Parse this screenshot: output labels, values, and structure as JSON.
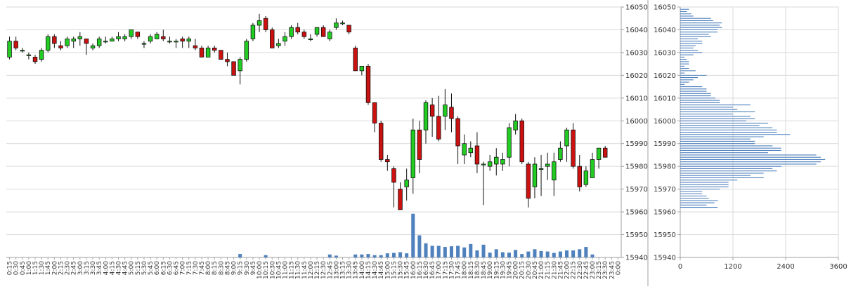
{
  "colors": {
    "up": "#22cc22",
    "down": "#cc1111",
    "wick": "#111111",
    "volume": "#4f81bd",
    "profile": "#4f81bd",
    "grid": "#d9d9d9",
    "axis": "#a0a0a0"
  },
  "chart_data": [
    {
      "type": "candlestick",
      "title": "",
      "xlabel": "",
      "ylabel": "",
      "ylim": [
        15940,
        16050
      ],
      "yticks": [
        15940,
        15950,
        15960,
        15970,
        15980,
        15990,
        16000,
        16010,
        16020,
        16030,
        16040,
        16050
      ],
      "grid": true,
      "categories": [
        "0:15",
        "0:30",
        "0:45",
        "1:00",
        "1:15",
        "1:30",
        "1:45",
        "2:00",
        "2:15",
        "2:30",
        "2:45",
        "3:00",
        "3:15",
        "3:30",
        "3:45",
        "4:00",
        "4:15",
        "4:30",
        "4:45",
        "5:00",
        "5:15",
        "5:30",
        "5:45",
        "6:00",
        "6:15",
        "6:30",
        "6:45",
        "7:00",
        "7:15",
        "7:30",
        "7:45",
        "8:00",
        "8:15",
        "8:30",
        "8:45",
        "9:00",
        "9:15",
        "9:30",
        "9:45",
        "10:00",
        "10:15",
        "10:30",
        "10:45",
        "11:00",
        "11:15",
        "11:30",
        "11:45",
        "12:00",
        "12:15",
        "12:30",
        "12:45",
        "13:00",
        "13:15",
        "13:30",
        "13:45",
        "14:00",
        "14:15",
        "14:30",
        "14:45",
        "15:00",
        "15:15",
        "15:30",
        "15:45",
        "16:00",
        "16:15",
        "16:30",
        "16:45",
        "17:00",
        "17:15",
        "17:30",
        "17:45",
        "18:00",
        "18:15",
        "18:30",
        "18:45",
        "19:00",
        "19:15",
        "19:30",
        "19:45",
        "20:00",
        "20:15",
        "20:30",
        "20:45",
        "21:00",
        "21:15",
        "21:30",
        "21:45",
        "22:00",
        "22:15",
        "22:30",
        "22:45",
        "23:00",
        "23:15",
        "23:30",
        "23:45",
        "0:00"
      ],
      "ohlc": [
        [
          16028,
          16037,
          16027,
          16035
        ],
        [
          16035,
          16037,
          16031,
          16032
        ],
        [
          16031,
          16032,
          16030,
          16031
        ],
        [
          16029,
          16030,
          16027,
          16029
        ],
        [
          16028,
          16029,
          16025,
          16026
        ],
        [
          16027,
          16032,
          16026,
          16031
        ],
        [
          16031,
          16038,
          16030,
          16037
        ],
        [
          16037,
          16038,
          16032,
          16034
        ],
        [
          16033,
          16035,
          16031,
          16032
        ],
        [
          16033,
          16037,
          16032,
          16036
        ],
        [
          16035,
          16037,
          16032,
          16036
        ],
        [
          16036,
          16039,
          16033,
          16037
        ],
        [
          16036,
          16036,
          16029,
          16034
        ],
        [
          16032,
          16034,
          16031,
          16033
        ],
        [
          16033,
          16037,
          16032,
          16036
        ],
        [
          16035,
          16037,
          16034,
          16035
        ],
        [
          16035,
          16037,
          16035,
          16036
        ],
        [
          16036,
          16039,
          16035,
          16037
        ],
        [
          16036,
          16038,
          16035,
          16037
        ],
        [
          16037,
          16040,
          16036,
          16040
        ],
        [
          16039,
          16039,
          16036,
          16037
        ],
        [
          16034,
          16035,
          16032,
          16034
        ],
        [
          16035,
          16038,
          16034,
          16037
        ],
        [
          16036,
          16039,
          16036,
          16038
        ],
        [
          16037,
          16040,
          16035,
          16036
        ],
        [
          16035,
          16037,
          16034,
          16035
        ],
        [
          16035,
          16036,
          16032,
          16035
        ],
        [
          16036,
          16037,
          16032,
          16035
        ],
        [
          16035,
          16037,
          16032,
          16036
        ],
        [
          16033,
          16036,
          16031,
          16032
        ],
        [
          16032,
          16033,
          16028,
          16028
        ],
        [
          16028,
          16033,
          16028,
          16032
        ],
        [
          16032,
          16033,
          16030,
          16031
        ],
        [
          16031,
          16031,
          16027,
          16027
        ],
        [
          16027,
          16030,
          16024,
          16026
        ],
        [
          16026,
          16026,
          16020,
          16020
        ],
        [
          16022,
          16028,
          16016,
          16027
        ],
        [
          16027,
          16036,
          16026,
          16035
        ],
        [
          16036,
          16043,
          16035,
          16042
        ],
        [
          16042,
          16047,
          16039,
          16044
        ],
        [
          16045,
          16046,
          16039,
          16040
        ],
        [
          16040,
          16041,
          16032,
          16032
        ],
        [
          16033,
          16036,
          16032,
          16034
        ],
        [
          16035,
          16039,
          16033,
          16037
        ],
        [
          16037,
          16042,
          16036,
          16041
        ],
        [
          16041,
          16043,
          16038,
          16039
        ],
        [
          16039,
          16040,
          16036,
          16037
        ],
        [
          16036,
          16038,
          16035,
          16036
        ],
        [
          16038,
          16041,
          16037,
          16041
        ],
        [
          16041,
          16042,
          16037,
          16037
        ],
        [
          16036,
          16040,
          16035,
          16039
        ],
        [
          16041,
          16045,
          16040,
          16043
        ],
        [
          16043,
          16044,
          16042,
          16043
        ],
        [
          16042,
          16042,
          16038,
          16039
        ],
        [
          16032,
          16033,
          16022,
          16022
        ],
        [
          16022,
          16024,
          16020,
          16024
        ],
        [
          16024,
          16025,
          16007,
          16008
        ],
        [
          16008,
          16008,
          15995,
          15999
        ],
        [
          15999,
          16000,
          15982,
          15983
        ],
        [
          15983,
          15985,
          15978,
          15982
        ],
        [
          15979,
          15980,
          15962,
          15973
        ],
        [
          15970,
          15973,
          15963,
          15961
        ],
        [
          15971,
          15979,
          15965,
          15974
        ],
        [
          15975,
          16001,
          15968,
          15996
        ],
        [
          15996,
          16000,
          15977,
          15983
        ],
        [
          15996,
          16009,
          15990,
          16008
        ],
        [
          16007,
          16010,
          15993,
          16002
        ],
        [
          16002,
          16011,
          15991,
          15992
        ],
        [
          16002,
          16014,
          15996,
          16007
        ],
        [
          16006,
          16012,
          15995,
          16001
        ],
        [
          16001,
          16002,
          15981,
          15989
        ],
        [
          15985,
          15994,
          15981,
          15990
        ],
        [
          15986,
          15991,
          15984,
          15988
        ],
        [
          15989,
          15995,
          15977,
          15981
        ],
        [
          15981,
          15982,
          15963,
          15981
        ],
        [
          15980,
          15985,
          15978,
          15982
        ],
        [
          15981,
          15988,
          15976,
          15984
        ],
        [
          15981,
          15986,
          15978,
          15983
        ],
        [
          15984,
          15999,
          15980,
          15997
        ],
        [
          15996,
          16003,
          15994,
          16000
        ],
        [
          16000,
          16001,
          15981,
          15982
        ],
        [
          15981,
          15982,
          15962,
          15966
        ],
        [
          15971,
          15984,
          15966,
          15981
        ],
        [
          15979,
          15985,
          15967,
          15979
        ],
        [
          15980,
          15986,
          15974,
          15981
        ],
        [
          15974,
          15986,
          15967,
          15982
        ],
        [
          15983,
          15991,
          15982,
          15988
        ],
        [
          15989,
          15997,
          15982,
          15996
        ],
        [
          15996,
          15999,
          15979,
          15980
        ],
        [
          15980,
          15985,
          15969,
          15971
        ],
        [
          15972,
          15980,
          15971,
          15978
        ],
        [
          15975,
          15986,
          15975,
          15983
        ],
        [
          15983,
          15988,
          15979,
          15988
        ],
        [
          15988,
          15989,
          15984,
          15984
        ],
        null,
        null
      ],
      "volume": [
        0,
        0,
        0,
        0,
        0,
        0,
        0,
        0,
        0,
        0,
        0,
        0,
        0,
        0,
        0,
        0,
        0,
        0,
        0,
        0,
        0,
        0,
        0,
        0,
        0,
        0,
        0,
        0,
        0,
        0,
        0,
        0,
        0,
        0,
        0,
        0,
        0.15,
        0,
        0,
        0,
        0.1,
        0,
        0,
        0,
        0,
        0,
        0,
        0,
        0,
        0,
        0.13,
        0.08,
        0,
        0,
        0.13,
        0.13,
        0.15,
        0.1,
        0.1,
        0.18,
        0.2,
        0.23,
        0.18,
        1.92,
        0.97,
        0.62,
        0.51,
        0.51,
        0.46,
        0.49,
        0.51,
        0.44,
        0.59,
        0.31,
        0.56,
        0.21,
        0.36,
        0.23,
        0.21,
        0.33,
        0.15,
        0.26,
        0.36,
        0.28,
        0.26,
        0.2,
        0.26,
        0.31,
        0.31,
        0.36,
        0.46,
        0.13,
        0,
        0,
        0,
        0
      ],
      "volume_ylim": [
        15940,
        15960
      ]
    },
    {
      "type": "bar",
      "orientation": "horizontal",
      "title": "",
      "xlabel": "",
      "ylabel": "",
      "ylim": [
        15940,
        16050
      ],
      "yticks": [
        15940,
        15950,
        15960,
        15970,
        15980,
        15990,
        16000,
        16010,
        16020,
        16030,
        16040,
        16050
      ],
      "xlim": [
        0,
        3600
      ],
      "xticks": [
        0,
        1200,
        2400,
        3600
      ],
      "grid": true,
      "bin_start": 15962,
      "bin_step": 1,
      "values": [
        850,
        600,
        780,
        860,
        650,
        600,
        500,
        500,
        900,
        1100,
        1100,
        1100,
        1300,
        1900,
        1600,
        1900,
        2200,
        2100,
        2300,
        3100,
        3200,
        3300,
        3200,
        3100,
        2000,
        2300,
        2300,
        2100,
        1700,
        1700,
        1600,
        1900,
        2500,
        2200,
        2200,
        2100,
        1800,
        2000,
        1500,
        1700,
        1600,
        1200,
        1700,
        1300,
        1200,
        1600,
        900,
        900,
        800,
        700,
        700,
        600,
        600,
        500,
        100,
        200,
        300,
        400,
        600,
        100,
        350,
        200,
        100,
        200,
        200,
        150,
        100,
        300,
        500,
        400,
        300,
        350,
        500,
        500,
        400,
        700,
        650,
        850,
        850,
        950,
        900,
        950,
        750,
        700,
        300,
        250,
        150,
        200
      ]
    }
  ]
}
